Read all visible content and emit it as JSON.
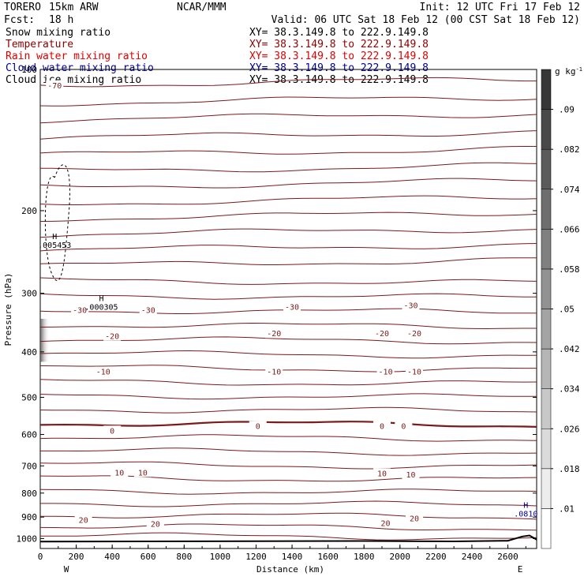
{
  "header": {
    "model": "TORERO",
    "resolution": "15km ARW",
    "org": "NCAR/MMM",
    "init": "Init: 12 UTC Fri 17 Feb 12",
    "fcst_label": "Fcst:",
    "fcst_value": "18 h",
    "valid": "Valid: 06 UTC Sat 18 Feb 12 (00 CST Sat 18 Feb 12)"
  },
  "legend": {
    "fields": [
      {
        "name": "Snow mixing ratio",
        "xy": "XY=  38.3.149.8 to 222.9.149.8",
        "color": "#000000"
      },
      {
        "name": "Temperature",
        "xy": "XY=  38.3.149.8 to 222.9.149.8",
        "color": "#8b0000"
      },
      {
        "name": "Rain water mixing ratio",
        "xy": "XY=  38.3.149.8 to 222.9.149.8",
        "color": "#e00000"
      },
      {
        "name": "Cloud water mixing ratio",
        "xy": "XY=  38.3.149.8 to 222.9.149.8",
        "color": "#00008b"
      },
      {
        "name": "Cloud ice mixing ratio",
        "xy": "XY=  38.3.149.8 to 222.9.149.8",
        "color": "#000000"
      }
    ]
  },
  "chart_data": {
    "type": "contour",
    "xlabel": "Distance (km)",
    "ylabel": "Pressure (hPa)",
    "xlim": [
      0,
      2760
    ],
    "ylim": [
      1050,
      100
    ],
    "y_scale": "log",
    "x_ticks": [
      0,
      200,
      400,
      600,
      800,
      1000,
      1200,
      1400,
      1600,
      1800,
      2000,
      2200,
      2400,
      2600
    ],
    "y_ticks": [
      200,
      300,
      400,
      500,
      600,
      700,
      800,
      900,
      1000
    ],
    "y_tick_top": "100",
    "x_end_labels": {
      "left": "W",
      "right": "E"
    },
    "colorbar": {
      "unit": "g kg",
      "unit_exp": "-1",
      "levels": [
        0.01,
        0.018,
        0.026,
        0.034,
        0.042,
        0.05,
        0.058,
        0.066,
        0.074,
        0.082,
        0.09
      ],
      "labels": [
        ".01",
        ".018",
        ".026",
        ".034",
        ".042",
        ".05",
        ".058",
        ".066",
        ".074",
        ".082",
        ".09"
      ]
    },
    "temperature_contour_labels": [
      {
        "text": "-70",
        "x": 80,
        "p": 108
      },
      {
        "text": "-30",
        "x": 220,
        "p": 325
      },
      {
        "text": "-30",
        "x": 600,
        "p": 325
      },
      {
        "text": "-30",
        "x": 1400,
        "p": 320
      },
      {
        "text": "-30",
        "x": 2060,
        "p": 318
      },
      {
        "text": "-20",
        "x": 400,
        "p": 370
      },
      {
        "text": "-20",
        "x": 1300,
        "p": 365
      },
      {
        "text": "-20",
        "x": 1900,
        "p": 365
      },
      {
        "text": "-20",
        "x": 2080,
        "p": 365
      },
      {
        "text": "-10",
        "x": 350,
        "p": 440
      },
      {
        "text": "-10",
        "x": 1300,
        "p": 440
      },
      {
        "text": "-10",
        "x": 1920,
        "p": 440
      },
      {
        "text": "-10",
        "x": 2080,
        "p": 440
      },
      {
        "text": "0",
        "x": 400,
        "p": 588
      },
      {
        "text": "0",
        "x": 1210,
        "p": 575
      },
      {
        "text": "0",
        "x": 1900,
        "p": 575
      },
      {
        "text": "0",
        "x": 2020,
        "p": 575
      },
      {
        "text": "10",
        "x": 440,
        "p": 722
      },
      {
        "text": "10",
        "x": 570,
        "p": 722
      },
      {
        "text": "10",
        "x": 1900,
        "p": 725
      },
      {
        "text": "10",
        "x": 2060,
        "p": 730
      },
      {
        "text": "20",
        "x": 240,
        "p": 912
      },
      {
        "text": "20",
        "x": 640,
        "p": 930
      },
      {
        "text": "20",
        "x": 1920,
        "p": 925
      },
      {
        "text": "20",
        "x": 2080,
        "p": 905
      }
    ],
    "highs": [
      {
        "label": "H",
        "value": ".005453",
        "x": 80,
        "p": 230,
        "color": "#000000"
      },
      {
        "label": "H",
        "value": ".000305",
        "x": 340,
        "p": 312,
        "color": "#000000"
      },
      {
        "label": "H",
        "value": ".0810",
        "x": 2700,
        "p": 860,
        "color": "#00008b"
      }
    ]
  }
}
